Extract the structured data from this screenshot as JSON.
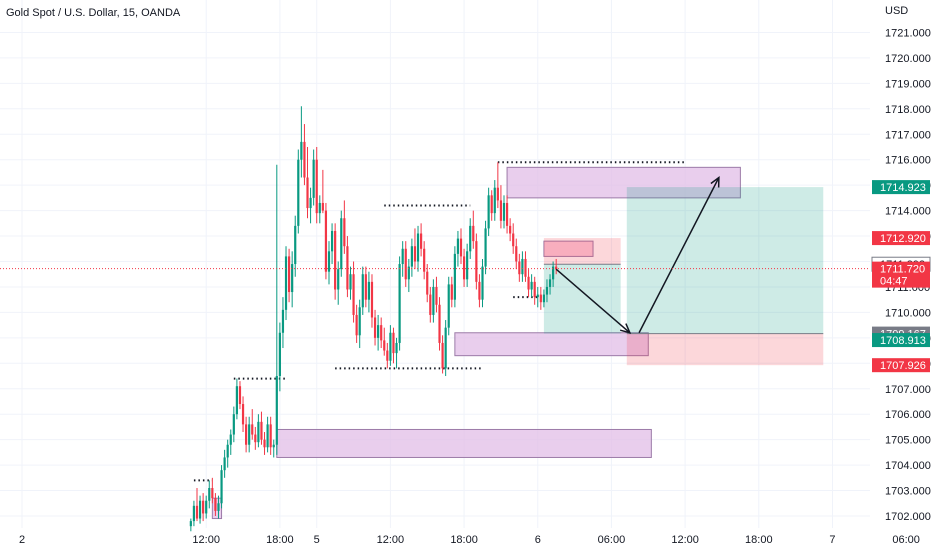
{
  "header": {
    "title": "Gold Spot / U.S. Dollar, 15, OANDA",
    "currency": "USD"
  },
  "chart_data": {
    "type": "candlestick",
    "title": "Gold Spot / U.S. Dollar, 15, OANDA",
    "ylabel": "USD",
    "ylim": [
      1701.5,
      1721.4
    ],
    "yticks": [
      1702,
      1703,
      1704,
      1705,
      1706,
      1707,
      1708,
      1709,
      1710,
      1711,
      1712,
      1713,
      1714,
      1715,
      1716,
      1717,
      1718,
      1719,
      1720,
      1721
    ],
    "ytick_labels": [
      "1702.000",
      "1703.000",
      "1704.000",
      "1705.000",
      "1706.000",
      "1707.000",
      "1708.000",
      "1709.000",
      "1710.000",
      "1711.000",
      "1712.000",
      "1713.000",
      "1714.000",
      "1715.000",
      "1716.000",
      "1717.000",
      "1718.000",
      "1719.000",
      "1720.000",
      "1721.000"
    ],
    "xlim_hours": [
      0,
      196
    ],
    "xticks": [
      {
        "hours": 0,
        "label": "2"
      },
      {
        "hours": 30,
        "label": "12:00"
      },
      {
        "hours": 42,
        "label": "18:00"
      },
      {
        "hours": 48,
        "label": "5"
      },
      {
        "hours": 60,
        "label": "12:00"
      },
      {
        "hours": 72,
        "label": "18:00"
      },
      {
        "hours": 84,
        "label": "6"
      },
      {
        "hours": 96,
        "label": "06:00"
      },
      {
        "hours": 108,
        "label": "12:00"
      },
      {
        "hours": 120,
        "label": "18:00"
      },
      {
        "hours": 132,
        "label": "7"
      },
      {
        "hours": 144,
        "label": "06:00"
      }
    ],
    "price_tags": [
      {
        "value": 1714.923,
        "label": "1714.923",
        "color": "#089981"
      },
      {
        "value": 1712.92,
        "label": "1712.920",
        "color": "#f23645"
      },
      {
        "value": 1711.893,
        "label": "1711.893",
        "color": "#787b86",
        "style": "outline"
      },
      {
        "value": 1711.72,
        "label": "1711.720",
        "sublabel": "04:47",
        "color": "#f23645"
      },
      {
        "value": 1709.167,
        "label": "1709.167",
        "color": "#787b86"
      },
      {
        "value": 1708.913,
        "label": "1708.913",
        "color": "#089981"
      },
      {
        "value": 1707.926,
        "label": "1707.926",
        "color": "#f23645"
      }
    ],
    "current_price": 1711.72,
    "candles": [
      {
        "t": 27.5,
        "o": 1701.6,
        "h": 1701.9,
        "l": 1701.4,
        "c": 1701.8
      },
      {
        "t": 28.0,
        "o": 1701.8,
        "h": 1702.6,
        "l": 1701.6,
        "c": 1702.4
      },
      {
        "t": 28.5,
        "o": 1702.4,
        "h": 1703.1,
        "l": 1701.8,
        "c": 1701.9
      },
      {
        "t": 29.0,
        "o": 1701.9,
        "h": 1702.8,
        "l": 1701.7,
        "c": 1702.6
      },
      {
        "t": 29.5,
        "o": 1702.6,
        "h": 1702.9,
        "l": 1701.8,
        "c": 1702.1
      },
      {
        "t": 30.0,
        "o": 1702.1,
        "h": 1702.8,
        "l": 1701.9,
        "c": 1702.6
      },
      {
        "t": 30.5,
        "o": 1702.6,
        "h": 1703.4,
        "l": 1702.3,
        "c": 1703.1
      },
      {
        "t": 31.0,
        "o": 1703.1,
        "h": 1703.5,
        "l": 1702.5,
        "c": 1702.7
      },
      {
        "t": 31.5,
        "o": 1702.7,
        "h": 1702.9,
        "l": 1702.0,
        "c": 1702.2
      },
      {
        "t": 32.0,
        "o": 1702.2,
        "h": 1702.8,
        "l": 1701.9,
        "c": 1702.5
      },
      {
        "t": 32.5,
        "o": 1702.5,
        "h": 1704.0,
        "l": 1702.3,
        "c": 1703.8
      },
      {
        "t": 33.0,
        "o": 1703.8,
        "h": 1704.6,
        "l": 1703.5,
        "c": 1704.3
      },
      {
        "t": 33.5,
        "o": 1704.3,
        "h": 1705.0,
        "l": 1703.9,
        "c": 1704.8
      },
      {
        "t": 34.0,
        "o": 1704.8,
        "h": 1705.4,
        "l": 1704.4,
        "c": 1705.2
      },
      {
        "t": 34.5,
        "o": 1705.2,
        "h": 1706.3,
        "l": 1704.9,
        "c": 1706.0
      },
      {
        "t": 35.0,
        "o": 1706.0,
        "h": 1707.4,
        "l": 1705.8,
        "c": 1707.1
      },
      {
        "t": 35.5,
        "o": 1707.1,
        "h": 1707.3,
        "l": 1706.2,
        "c": 1706.4
      },
      {
        "t": 36.0,
        "o": 1706.4,
        "h": 1706.7,
        "l": 1705.3,
        "c": 1705.6
      },
      {
        "t": 36.5,
        "o": 1705.6,
        "h": 1705.9,
        "l": 1704.5,
        "c": 1704.8
      },
      {
        "t": 37.0,
        "o": 1704.8,
        "h": 1705.9,
        "l": 1704.5,
        "c": 1705.6
      },
      {
        "t": 37.5,
        "o": 1705.6,
        "h": 1706.2,
        "l": 1705.0,
        "c": 1705.2
      },
      {
        "t": 38.0,
        "o": 1705.2,
        "h": 1705.5,
        "l": 1704.6,
        "c": 1704.9
      },
      {
        "t": 38.5,
        "o": 1704.9,
        "h": 1706.0,
        "l": 1704.7,
        "c": 1705.7
      },
      {
        "t": 39.0,
        "o": 1705.7,
        "h": 1706.1,
        "l": 1704.8,
        "c": 1705.0
      },
      {
        "t": 39.5,
        "o": 1705.0,
        "h": 1705.3,
        "l": 1704.4,
        "c": 1704.7
      },
      {
        "t": 40.0,
        "o": 1704.7,
        "h": 1705.9,
        "l": 1704.5,
        "c": 1705.6
      },
      {
        "t": 40.5,
        "o": 1705.6,
        "h": 1705.9,
        "l": 1704.4,
        "c": 1704.7
      },
      {
        "t": 41.0,
        "o": 1704.7,
        "h": 1705.0,
        "l": 1704.3,
        "c": 1704.8
      },
      {
        "t": 41.5,
        "o": 1704.8,
        "h": 1715.8,
        "l": 1704.4,
        "c": 1707.5
      },
      {
        "t": 42.0,
        "o": 1707.5,
        "h": 1709.6,
        "l": 1706.9,
        "c": 1709.2
      },
      {
        "t": 42.5,
        "o": 1709.2,
        "h": 1710.6,
        "l": 1708.6,
        "c": 1710.1
      },
      {
        "t": 43.0,
        "o": 1710.1,
        "h": 1712.6,
        "l": 1709.7,
        "c": 1712.2
      },
      {
        "t": 43.5,
        "o": 1712.2,
        "h": 1712.5,
        "l": 1710.4,
        "c": 1710.8
      },
      {
        "t": 44.0,
        "o": 1710.8,
        "h": 1712.4,
        "l": 1710.2,
        "c": 1711.9
      },
      {
        "t": 44.5,
        "o": 1711.9,
        "h": 1713.8,
        "l": 1711.4,
        "c": 1713.4
      },
      {
        "t": 45.0,
        "o": 1713.4,
        "h": 1716.4,
        "l": 1713.1,
        "c": 1716.0
      },
      {
        "t": 45.5,
        "o": 1716.0,
        "h": 1718.1,
        "l": 1715.3,
        "c": 1716.7
      },
      {
        "t": 46.0,
        "o": 1716.7,
        "h": 1717.4,
        "l": 1715.0,
        "c": 1715.3
      },
      {
        "t": 46.5,
        "o": 1715.3,
        "h": 1716.5,
        "l": 1713.7,
        "c": 1714.1
      },
      {
        "t": 47.0,
        "o": 1714.1,
        "h": 1714.9,
        "l": 1713.5,
        "c": 1714.5
      },
      {
        "t": 47.5,
        "o": 1714.5,
        "h": 1716.4,
        "l": 1714.2,
        "c": 1716.0
      },
      {
        "t": 48.0,
        "o": 1716.0,
        "h": 1716.5,
        "l": 1713.5,
        "c": 1713.9
      },
      {
        "t": 48.5,
        "o": 1713.9,
        "h": 1714.6,
        "l": 1713.5,
        "c": 1714.3
      },
      {
        "t": 49.0,
        "o": 1714.3,
        "h": 1715.6,
        "l": 1713.9,
        "c": 1714.0
      },
      {
        "t": 49.5,
        "o": 1714.0,
        "h": 1714.3,
        "l": 1711.3,
        "c": 1711.6
      },
      {
        "t": 50.0,
        "o": 1711.6,
        "h": 1712.8,
        "l": 1711.1,
        "c": 1712.4
      },
      {
        "t": 50.5,
        "o": 1712.4,
        "h": 1713.5,
        "l": 1711.9,
        "c": 1713.2
      },
      {
        "t": 51.0,
        "o": 1713.2,
        "h": 1713.5,
        "l": 1710.5,
        "c": 1710.9
      },
      {
        "t": 51.5,
        "o": 1710.9,
        "h": 1712.0,
        "l": 1710.3,
        "c": 1711.7
      },
      {
        "t": 52.0,
        "o": 1711.7,
        "h": 1714.0,
        "l": 1711.4,
        "c": 1713.7
      },
      {
        "t": 52.5,
        "o": 1713.7,
        "h": 1714.4,
        "l": 1712.3,
        "c": 1712.6
      },
      {
        "t": 53.0,
        "o": 1712.6,
        "h": 1713.0,
        "l": 1710.6,
        "c": 1710.9
      },
      {
        "t": 53.5,
        "o": 1710.9,
        "h": 1711.8,
        "l": 1710.5,
        "c": 1711.5
      },
      {
        "t": 54.0,
        "o": 1711.5,
        "h": 1712.0,
        "l": 1709.6,
        "c": 1709.9
      },
      {
        "t": 54.5,
        "o": 1709.9,
        "h": 1710.3,
        "l": 1708.8,
        "c": 1709.1
      },
      {
        "t": 55.0,
        "o": 1709.1,
        "h": 1710.5,
        "l": 1708.6,
        "c": 1710.2
      },
      {
        "t": 55.5,
        "o": 1710.2,
        "h": 1711.8,
        "l": 1709.9,
        "c": 1711.5
      },
      {
        "t": 56.0,
        "o": 1711.5,
        "h": 1711.8,
        "l": 1710.2,
        "c": 1710.5
      },
      {
        "t": 56.5,
        "o": 1710.5,
        "h": 1711.6,
        "l": 1710.0,
        "c": 1711.2
      },
      {
        "t": 57.0,
        "o": 1711.2,
        "h": 1711.5,
        "l": 1709.4,
        "c": 1709.8
      },
      {
        "t": 57.5,
        "o": 1709.8,
        "h": 1710.1,
        "l": 1708.7,
        "c": 1709.0
      },
      {
        "t": 58.0,
        "o": 1709.0,
        "h": 1709.9,
        "l": 1708.5,
        "c": 1709.5
      },
      {
        "t": 58.5,
        "o": 1709.5,
        "h": 1709.8,
        "l": 1708.6,
        "c": 1708.9
      },
      {
        "t": 59.0,
        "o": 1708.9,
        "h": 1709.4,
        "l": 1708.3,
        "c": 1708.5
      },
      {
        "t": 59.5,
        "o": 1708.5,
        "h": 1708.8,
        "l": 1707.8,
        "c": 1708.1
      },
      {
        "t": 60.0,
        "o": 1708.1,
        "h": 1709.5,
        "l": 1707.9,
        "c": 1709.2
      },
      {
        "t": 60.5,
        "o": 1709.2,
        "h": 1709.4,
        "l": 1708.0,
        "c": 1708.4
      },
      {
        "t": 61.0,
        "o": 1708.4,
        "h": 1709.0,
        "l": 1707.8,
        "c": 1708.8
      },
      {
        "t": 61.5,
        "o": 1708.8,
        "h": 1712.2,
        "l": 1708.5,
        "c": 1711.9
      },
      {
        "t": 62.0,
        "o": 1711.9,
        "h": 1712.8,
        "l": 1711.4,
        "c": 1712.5
      },
      {
        "t": 62.5,
        "o": 1712.5,
        "h": 1712.8,
        "l": 1711.0,
        "c": 1711.3
      },
      {
        "t": 63.0,
        "o": 1711.3,
        "h": 1712.1,
        "l": 1710.8,
        "c": 1711.8
      },
      {
        "t": 63.5,
        "o": 1711.8,
        "h": 1712.9,
        "l": 1711.4,
        "c": 1712.6
      },
      {
        "t": 64.0,
        "o": 1712.6,
        "h": 1713.3,
        "l": 1711.7,
        "c": 1712.0
      },
      {
        "t": 64.5,
        "o": 1712.0,
        "h": 1713.4,
        "l": 1711.6,
        "c": 1713.1
      },
      {
        "t": 65.0,
        "o": 1713.1,
        "h": 1713.5,
        "l": 1712.2,
        "c": 1712.5
      },
      {
        "t": 65.5,
        "o": 1712.5,
        "h": 1712.8,
        "l": 1711.3,
        "c": 1711.6
      },
      {
        "t": 66.0,
        "o": 1711.6,
        "h": 1711.9,
        "l": 1710.4,
        "c": 1710.7
      },
      {
        "t": 66.5,
        "o": 1710.7,
        "h": 1711.0,
        "l": 1709.6,
        "c": 1709.9
      },
      {
        "t": 67.0,
        "o": 1709.9,
        "h": 1711.3,
        "l": 1709.6,
        "c": 1711.0
      },
      {
        "t": 67.5,
        "o": 1711.0,
        "h": 1711.4,
        "l": 1710.0,
        "c": 1710.3
      },
      {
        "t": 68.0,
        "o": 1710.3,
        "h": 1710.6,
        "l": 1708.5,
        "c": 1708.8
      },
      {
        "t": 68.5,
        "o": 1708.8,
        "h": 1709.1,
        "l": 1707.6,
        "c": 1707.8
      },
      {
        "t": 69.0,
        "o": 1707.8,
        "h": 1709.7,
        "l": 1707.5,
        "c": 1709.4
      },
      {
        "t": 69.5,
        "o": 1709.4,
        "h": 1711.4,
        "l": 1709.1,
        "c": 1711.1
      },
      {
        "t": 70.0,
        "o": 1711.1,
        "h": 1711.4,
        "l": 1710.2,
        "c": 1710.5
      },
      {
        "t": 70.5,
        "o": 1710.5,
        "h": 1712.6,
        "l": 1710.2,
        "c": 1712.3
      },
      {
        "t": 71.0,
        "o": 1712.3,
        "h": 1713.2,
        "l": 1711.8,
        "c": 1712.9
      },
      {
        "t": 71.5,
        "o": 1712.9,
        "h": 1713.3,
        "l": 1711.9,
        "c": 1712.2
      },
      {
        "t": 72.0,
        "o": 1712.2,
        "h": 1712.5,
        "l": 1711.0,
        "c": 1711.3
      },
      {
        "t": 72.5,
        "o": 1711.3,
        "h": 1712.7,
        "l": 1711.0,
        "c": 1712.4
      },
      {
        "t": 73.0,
        "o": 1712.4,
        "h": 1713.7,
        "l": 1712.1,
        "c": 1713.4
      },
      {
        "t": 73.5,
        "o": 1713.4,
        "h": 1714.0,
        "l": 1712.5,
        "c": 1712.8
      },
      {
        "t": 74.0,
        "o": 1712.8,
        "h": 1713.1,
        "l": 1710.9,
        "c": 1711.2
      },
      {
        "t": 74.5,
        "o": 1711.2,
        "h": 1711.5,
        "l": 1710.2,
        "c": 1710.5
      },
      {
        "t": 75.0,
        "o": 1710.5,
        "h": 1712.1,
        "l": 1710.2,
        "c": 1711.8
      },
      {
        "t": 75.5,
        "o": 1711.8,
        "h": 1713.6,
        "l": 1711.5,
        "c": 1713.3
      },
      {
        "t": 76.0,
        "o": 1713.3,
        "h": 1714.9,
        "l": 1713.0,
        "c": 1714.6
      },
      {
        "t": 76.5,
        "o": 1714.6,
        "h": 1714.8,
        "l": 1713.6,
        "c": 1713.9
      },
      {
        "t": 77.0,
        "o": 1713.9,
        "h": 1715.2,
        "l": 1713.6,
        "c": 1714.9
      },
      {
        "t": 77.5,
        "o": 1714.9,
        "h": 1715.9,
        "l": 1714.1,
        "c": 1714.4
      },
      {
        "t": 78.0,
        "o": 1714.4,
        "h": 1715.0,
        "l": 1713.3,
        "c": 1713.6
      },
      {
        "t": 78.5,
        "o": 1713.6,
        "h": 1714.6,
        "l": 1713.3,
        "c": 1714.3
      },
      {
        "t": 79.0,
        "o": 1714.3,
        "h": 1714.6,
        "l": 1713.1,
        "c": 1713.4
      },
      {
        "t": 79.5,
        "o": 1713.4,
        "h": 1713.7,
        "l": 1712.8,
        "c": 1713.1
      },
      {
        "t": 80.0,
        "o": 1713.1,
        "h": 1713.5,
        "l": 1712.3,
        "c": 1712.6
      },
      {
        "t": 80.5,
        "o": 1712.6,
        "h": 1712.9,
        "l": 1711.7,
        "c": 1712.0
      },
      {
        "t": 81.0,
        "o": 1712.0,
        "h": 1712.3,
        "l": 1711.2,
        "c": 1711.5
      },
      {
        "t": 81.5,
        "o": 1711.5,
        "h": 1712.4,
        "l": 1711.2,
        "c": 1712.1
      },
      {
        "t": 82.0,
        "o": 1712.1,
        "h": 1712.4,
        "l": 1711.2,
        "c": 1711.4
      },
      {
        "t": 82.5,
        "o": 1711.4,
        "h": 1711.7,
        "l": 1710.6,
        "c": 1710.9
      },
      {
        "t": 83.0,
        "o": 1710.9,
        "h": 1711.5,
        "l": 1710.6,
        "c": 1711.2
      },
      {
        "t": 83.5,
        "o": 1711.2,
        "h": 1711.4,
        "l": 1710.3,
        "c": 1710.6
      },
      {
        "t": 84.0,
        "o": 1710.6,
        "h": 1711.0,
        "l": 1710.2,
        "c": 1710.7
      },
      {
        "t": 84.5,
        "o": 1710.7,
        "h": 1711.0,
        "l": 1710.1,
        "c": 1710.4
      },
      {
        "t": 85.0,
        "o": 1710.4,
        "h": 1710.9,
        "l": 1710.2,
        "c": 1710.7
      },
      {
        "t": 85.5,
        "o": 1710.7,
        "h": 1711.3,
        "l": 1710.4,
        "c": 1711.0
      },
      {
        "t": 86.0,
        "o": 1711.0,
        "h": 1711.5,
        "l": 1710.7,
        "c": 1711.3
      },
      {
        "t": 86.5,
        "o": 1711.3,
        "h": 1712.0,
        "l": 1711.0,
        "c": 1711.8
      },
      {
        "t": 87.0,
        "o": 1711.8,
        "h": 1712.1,
        "l": 1711.5,
        "c": 1711.7
      }
    ],
    "levels": [
      {
        "label": "high-level",
        "y": 1715.9,
        "x0": 77.5,
        "x1": 108.0
      },
      {
        "label": "mid-level",
        "y": 1714.2,
        "x0": 59.0,
        "x1": 73.0
      },
      {
        "label": "low-level",
        "y": 1707.8,
        "x0": 51.0,
        "x1": 75.0
      },
      {
        "label": "lower-level",
        "y": 1707.4,
        "x0": 34.5,
        "x1": 43.0
      },
      {
        "label": "bottom-level",
        "y": 1703.4,
        "x0": 28.0,
        "x1": 31.0
      },
      {
        "label": "local-low",
        "y": 1710.6,
        "x0": 80.0,
        "x1": 85.0
      }
    ],
    "zones": [
      {
        "name": "supply-zone-top",
        "y0": 1714.5,
        "y1": 1715.7,
        "x0": 79.0,
        "x1": 117.0,
        "fill": "#e1bee7"
      },
      {
        "name": "demand-zone-mid",
        "y0": 1708.3,
        "y1": 1709.2,
        "x0": 70.5,
        "x1": 102.0,
        "fill": "#e1bee7"
      },
      {
        "name": "demand-zone-low",
        "y0": 1704.3,
        "y1": 1705.4,
        "x0": 41.5,
        "x1": 102.5,
        "fill": "#e1bee7"
      },
      {
        "name": "small-zone-low",
        "y0": 1701.9,
        "y1": 1702.7,
        "x0": 31.0,
        "x1": 32.5,
        "fill": "#e1bee7"
      },
      {
        "name": "small-zone-top",
        "y0": 1712.2,
        "y1": 1712.8,
        "x0": 85.0,
        "x1": 93.0,
        "fill": "#f8bbd0"
      }
    ],
    "positions": [
      {
        "name": "short-position",
        "entry": 1711.893,
        "stop": 1712.92,
        "target": 1709.167,
        "x0": 85.0,
        "x1": 97.5
      },
      {
        "name": "long-position",
        "entry": 1709.167,
        "stop": 1707.926,
        "target": 1714.923,
        "x0": 98.5,
        "x1": 130.5
      }
    ],
    "arrows": [
      {
        "name": "arrow-down",
        "from": [
          87.0,
          1711.7
        ],
        "to": [
          99.0,
          1709.2
        ]
      },
      {
        "name": "arrow-up",
        "from": [
          100.5,
          1709.2
        ],
        "to": [
          113.5,
          1715.3
        ]
      }
    ]
  }
}
